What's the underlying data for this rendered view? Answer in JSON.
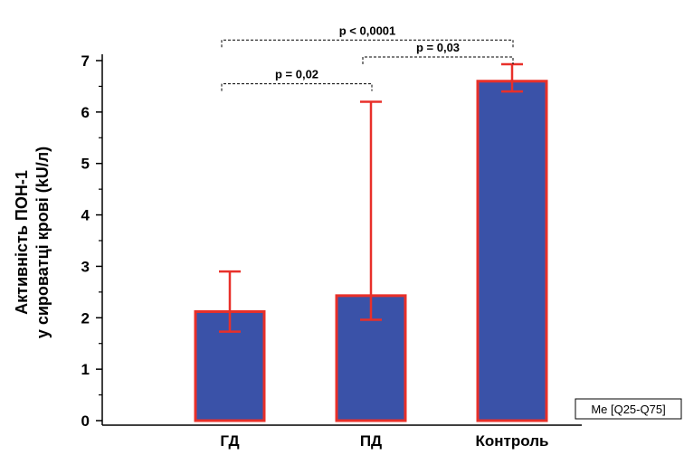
{
  "chart_data": {
    "type": "bar",
    "categories": [
      "ГД",
      "ПД",
      "Контроль"
    ],
    "values": [
      2.12,
      2.43,
      6.6
    ],
    "error_low": [
      1.73,
      1.96,
      6.4
    ],
    "error_high": [
      2.9,
      6.2,
      6.93
    ],
    "ylabel_lines": [
      "Активність ПОН-1",
      "у сироватці крові (kU/л)"
    ],
    "ylim": [
      0,
      7
    ],
    "yticks": [
      0,
      1,
      2,
      3,
      4,
      5,
      6,
      7
    ],
    "grid": false,
    "legend_text": "Me [Q25-Q75]",
    "legend_position": "bottom-right",
    "bar_fill": "#3a52a8",
    "bar_stroke": "#e8302a",
    "error_color": "#e8302a",
    "significance": [
      {
        "from": 0,
        "to": 1,
        "label": "p = 0,02",
        "level": 6.55
      },
      {
        "from": 1,
        "to": 2,
        "label": "p = 0,03",
        "level": 7.07
      },
      {
        "from": 0,
        "to": 2,
        "label": "p < 0,0001",
        "level": 7.4
      }
    ]
  }
}
